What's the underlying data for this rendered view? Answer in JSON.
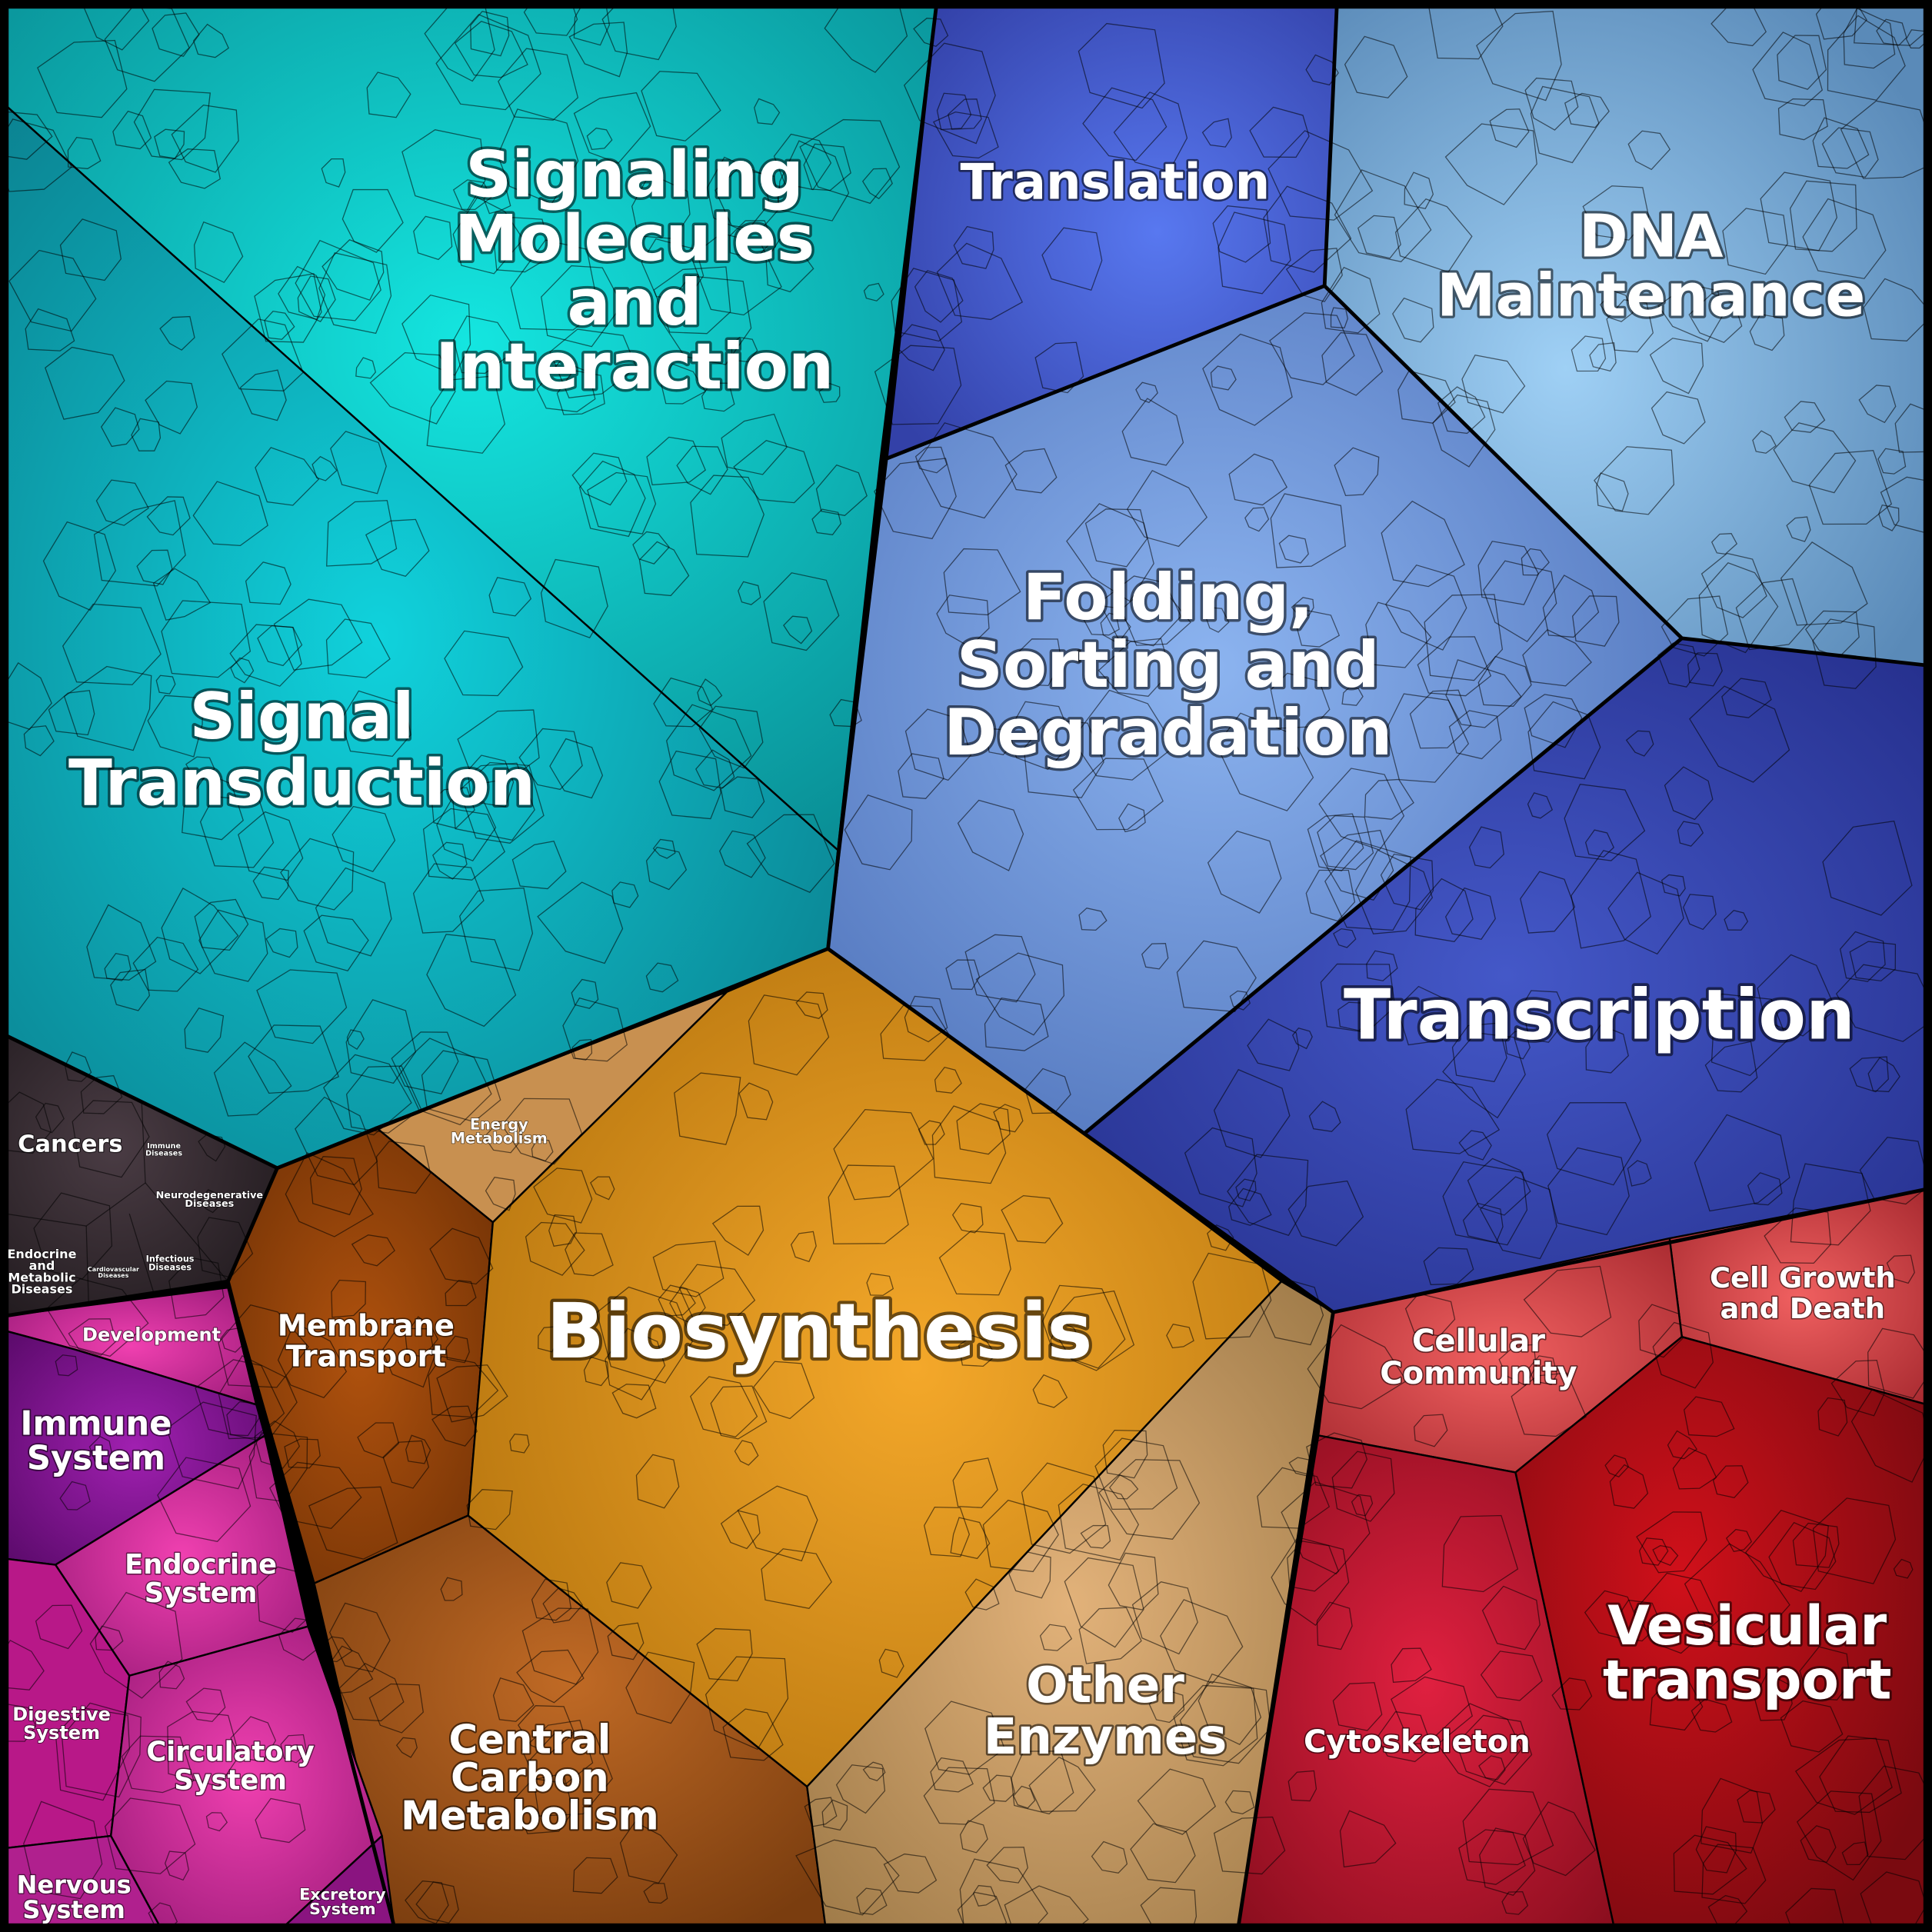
{
  "nodes": [
    {
      "label": [
        "Signaling",
        "Molecules",
        "and",
        "Interaction"
      ]
    },
    {
      "label": [
        "Signal",
        "Transduction"
      ]
    },
    {
      "label": [
        "Translation"
      ]
    },
    {
      "label": [
        "DNA",
        "Maintenance"
      ]
    },
    {
      "label": [
        "Folding,",
        "Sorting and",
        "Degradation"
      ]
    },
    {
      "label": [
        "Transcription"
      ]
    },
    {
      "label": [
        "Biosynthesis"
      ]
    },
    {
      "label": [
        "Energy",
        "Metabolism"
      ]
    },
    {
      "label": [
        "Membrane",
        "Transport"
      ]
    },
    {
      "label": [
        "Central",
        "Carbon",
        "Metabolism"
      ]
    },
    {
      "label": [
        "Other",
        "Enzymes"
      ]
    },
    {
      "label": [
        "Cellular",
        "Community"
      ]
    },
    {
      "label": [
        "Cell Growth",
        "and Death"
      ]
    },
    {
      "label": [
        "Cytoskeleton"
      ]
    },
    {
      "label": [
        "Vesicular",
        "transport"
      ]
    },
    {
      "label": [
        "Cancers"
      ]
    },
    {
      "label": [
        "Immune",
        "Diseases"
      ]
    },
    {
      "label": [
        "Neurodegenerative",
        "Diseases"
      ]
    },
    {
      "label": [
        "Endocrine",
        "and",
        "Metabolic",
        "Diseases"
      ]
    },
    {
      "label": [
        "Cardiovascular",
        "Diseases"
      ]
    },
    {
      "label": [
        "Infectious",
        "Diseases"
      ]
    },
    {
      "label": [
        "Development"
      ]
    },
    {
      "label": [
        "Immune",
        "System"
      ]
    },
    {
      "label": [
        "Endocrine",
        "System"
      ]
    },
    {
      "label": [
        "Digestive",
        "System"
      ]
    },
    {
      "label": [
        "Circulatory",
        "System"
      ]
    },
    {
      "label": [
        "Nervous",
        "System"
      ]
    },
    {
      "label": [
        "Excretory",
        "System"
      ]
    }
  ]
}
